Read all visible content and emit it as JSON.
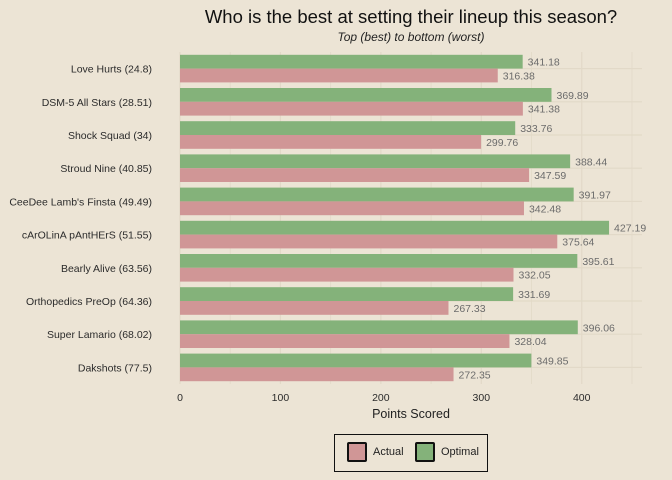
{
  "colors": {
    "background": "#ece4d5",
    "actual": "#d09696",
    "optimal": "#84b27a",
    "grid": "#e2d9c8"
  },
  "chart_data": {
    "type": "bar",
    "orientation": "horizontal",
    "title": "Who is the best at setting their lineup this season?",
    "subtitle": "Top (best) to bottom (worst)",
    "xlabel": "Points Scored",
    "ylabel": "",
    "xlim": [
      0,
      460
    ],
    "xticks": [
      0,
      100,
      200,
      300,
      400
    ],
    "grid": true,
    "legend_position": "bottom",
    "categories": [
      "Love Hurts (24.8)",
      "DSM-5 All Stars (28.51)",
      "Shock Squad (34)",
      "Stroud Nine (40.85)",
      "CeeDee Lamb's Finsta (49.49)",
      "cArOLinA pAntHErS (51.55)",
      "Bearly Alive (63.56)",
      "Orthopedics PreOp (64.36)",
      "Super Lamario (68.02)",
      "Dakshots (77.5)"
    ],
    "series": [
      {
        "name": "Optimal",
        "values": [
          341.18,
          369.89,
          333.76,
          388.44,
          391.97,
          427.19,
          395.61,
          331.69,
          396.06,
          349.85
        ],
        "labels": [
          "341.18",
          "369.89",
          "333.76",
          "388.44",
          "391.97",
          "427.19",
          "395.61",
          "331.69",
          "396.06",
          "349.85"
        ]
      },
      {
        "name": "Actual",
        "values": [
          316.38,
          341.38,
          299.76,
          347.59,
          342.48,
          375.64,
          332.05,
          267.33,
          328.04,
          272.35
        ],
        "labels": [
          "316.38",
          "341.38",
          "299.76",
          "347.59",
          "342.48",
          "375.64",
          "332.05",
          "267.33",
          "328.04",
          "272.35"
        ]
      }
    ]
  },
  "legend": {
    "actual_label": "Actual",
    "optimal_label": "Optimal"
  }
}
